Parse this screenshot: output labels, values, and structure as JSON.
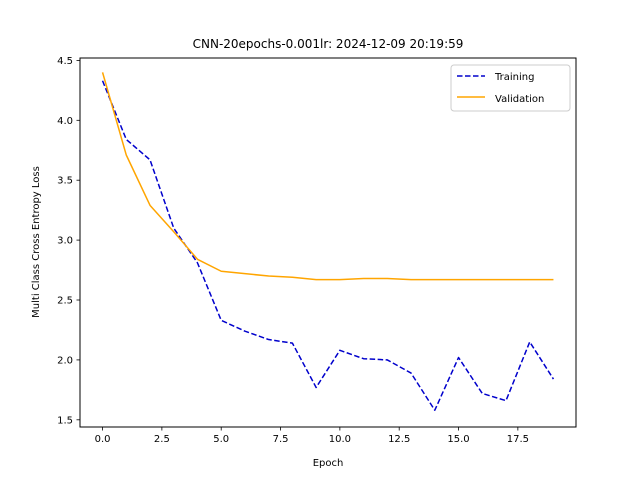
{
  "chart_data": {
    "type": "line",
    "title": "CNN-20epochs-0.001lr: 2024-12-09 20:19:59",
    "xlabel": "Epoch",
    "ylabel": "Multi Class Cross Entropy Loss",
    "xlim": [
      -0.95,
      19.95
    ],
    "ylim": [
      1.44,
      4.52
    ],
    "xticks": [
      0.0,
      2.5,
      5.0,
      7.5,
      10.0,
      12.5,
      15.0,
      17.5
    ],
    "xtick_labels": [
      "0.0",
      "2.5",
      "5.0",
      "7.5",
      "10.0",
      "12.5",
      "15.0",
      "17.5"
    ],
    "yticks": [
      1.5,
      2.0,
      2.5,
      3.0,
      3.5,
      4.0,
      4.5
    ],
    "ytick_labels": [
      "1.5",
      "2.0",
      "2.5",
      "3.0",
      "3.5",
      "4.0",
      "4.5"
    ],
    "grid": false,
    "legend_position": "top-right",
    "x": [
      0,
      1,
      2,
      3,
      4,
      5,
      6,
      7,
      8,
      9,
      10,
      11,
      12,
      13,
      14,
      15,
      16,
      17,
      18,
      19
    ],
    "series": [
      {
        "name": "Training",
        "color": "#0000cc",
        "style": "dashed",
        "values": [
          4.33,
          3.84,
          3.67,
          3.1,
          2.81,
          2.33,
          2.24,
          2.17,
          2.14,
          1.77,
          2.08,
          2.01,
          2.0,
          1.89,
          1.58,
          2.02,
          1.72,
          1.66,
          2.15,
          1.84
        ]
      },
      {
        "name": "Validation",
        "color": "#ffa500",
        "style": "solid",
        "values": [
          4.4,
          3.71,
          3.29,
          3.07,
          2.84,
          2.74,
          2.72,
          2.7,
          2.69,
          2.67,
          2.67,
          2.68,
          2.68,
          2.67,
          2.67,
          2.67,
          2.67,
          2.67,
          2.67,
          2.67
        ]
      }
    ]
  }
}
